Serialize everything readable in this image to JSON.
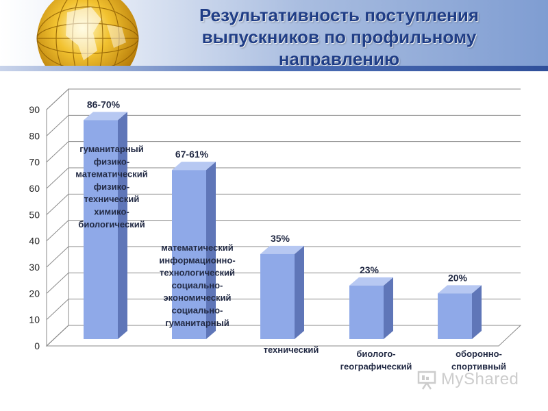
{
  "title": "Результативность поступления выпускников по профильному направлению",
  "watermark": "MyShared",
  "colors": {
    "bar_front": "#8fa9e8",
    "bar_side": "#5f76b8",
    "bar_top": "#b7c8f2",
    "grid": "#8a8a8a",
    "title": "#1f3d86",
    "label": "#222a44"
  },
  "chart_data": {
    "type": "bar",
    "ylim": [
      0,
      90
    ],
    "yticks": [
      0,
      10,
      20,
      30,
      40,
      50,
      60,
      70,
      80,
      90
    ],
    "grid": true,
    "categories": [
      "гуманитарный физико-математический физико-технический химико-биологический",
      "математический информационно-технологический социально-экономический социально-гуманитарный",
      "технический",
      "биолого-географический",
      "оборонно-спортивный"
    ],
    "category_lines": [
      [
        "гуманитарный",
        "физико-",
        "математический",
        "физико-",
        "технический",
        "химико-",
        "биологический"
      ],
      [
        "математический",
        "информационно-",
        "технологический",
        "социально-",
        "экономический",
        "социально-",
        "гуманитарный"
      ],
      [
        "технический"
      ],
      [
        "биолого-",
        "географический"
      ],
      [
        "оборонно-",
        "спортивный"
      ]
    ],
    "values": [
      86,
      67,
      35,
      23,
      20
    ],
    "data_labels": [
      "86-70%",
      "67-61%",
      "35%",
      "23%",
      "20%"
    ],
    "xlabel": "",
    "ylabel": ""
  }
}
